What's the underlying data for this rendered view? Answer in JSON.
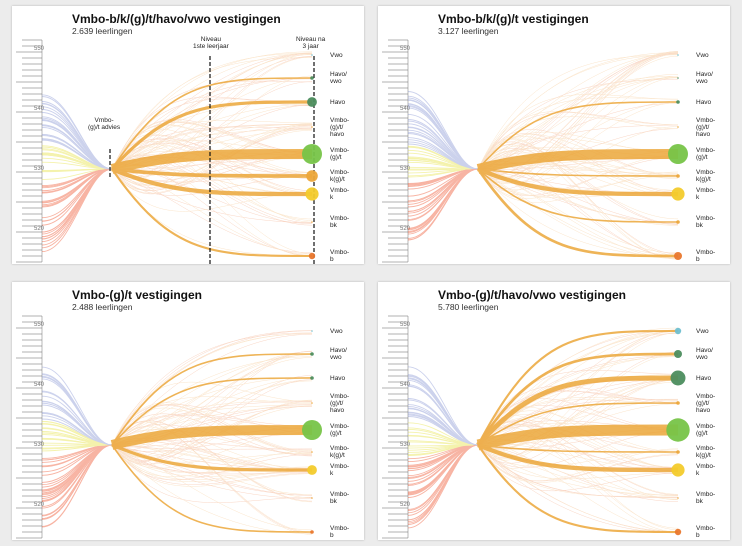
{
  "chart_data": [
    {
      "type": "flow",
      "title": "Vmbo-b/k/(g)/t/havo/vwo vestigingen",
      "subtitle": "2.639 leerlingen",
      "axis_ticks": [
        "550",
        "540",
        "530",
        "520"
      ],
      "ylim": [
        515,
        552
      ],
      "categories": [
        "Vwo",
        "Havo/\nvwo",
        "Havo",
        "Vmbo-\n(g)/t/\nhavo",
        "Vmbo-\n(g)/t",
        "Vmbo-\nk(g)/t",
        "Vmbo-\nk",
        "Vmbo-\nbk",
        "Vmbo-\nb"
      ],
      "node_sizes": [
        0,
        1,
        4,
        0,
        10,
        5,
        6,
        0,
        2
      ],
      "annotations": {
        "advies": "Vmbo-\n(g)/t advies",
        "year1": "Niveau\n1ste leerjaar",
        "year3": "Niveau na\n3 jaar"
      }
    },
    {
      "type": "flow",
      "title": "Vmbo-b/k/(g)/t vestigingen",
      "subtitle": "3.127 leerlingen",
      "axis_ticks": [
        "550",
        "540",
        "530",
        "520"
      ],
      "ylim": [
        515,
        552
      ],
      "categories": [
        "Vwo",
        "Havo/\nvwo",
        "Havo",
        "Vmbo-\n(g)/t/\nhavo",
        "Vmbo-\n(g)/t",
        "Vmbo-\nk(g)/t",
        "Vmbo-\nk",
        "Vmbo-\nbk",
        "Vmbo-\nb"
      ],
      "node_sizes": [
        0,
        0,
        1,
        0,
        10,
        1,
        6,
        1,
        3
      ]
    },
    {
      "type": "flow",
      "title": "Vmbo-(g)/t vestigingen",
      "subtitle": "2.488 leerlingen",
      "axis_ticks": [
        "550",
        "540",
        "530",
        "520"
      ],
      "ylim": [
        515,
        552
      ],
      "categories": [
        "Vwo",
        "Havo/\nvwo",
        "Havo",
        "Vmbo-\n(g)/t/\nhavo",
        "Vmbo-\n(g)/t",
        "Vmbo-\nk(g)/t",
        "Vmbo-\nk",
        "Vmbo-\nbk",
        "Vmbo-\nb"
      ],
      "node_sizes": [
        0,
        1,
        1,
        0,
        10,
        0,
        4,
        0,
        1
      ]
    },
    {
      "type": "flow",
      "title": "Vmbo-(g)/t/havo/vwo vestigingen",
      "subtitle": "5.780 leerlingen",
      "axis_ticks": [
        "550",
        "540",
        "530",
        "520"
      ],
      "ylim": [
        515,
        552
      ],
      "categories": [
        "Vwo",
        "Havo/\nvwo",
        "Havo",
        "Vmbo-\n(g)/t/\nhavo",
        "Vmbo-\n(g)/t",
        "Vmbo-\nk(g)/t",
        "Vmbo-\nk",
        "Vmbo-\nbk",
        "Vmbo-\nb"
      ],
      "node_sizes": [
        2,
        3,
        7,
        1,
        12,
        1,
        6,
        0,
        2
      ]
    }
  ],
  "colors": {
    "main_flow": "#eca73a",
    "vmbo_gt_node": "#77c448",
    "havo_node": "#4c8d5e",
    "vmbo_k_node": "#f3cb2c",
    "vmbo_b_node": "#e9772d",
    "vwo_node": "#6fbfd0",
    "left_blue": "#8e9bd6",
    "left_yellow": "#e7e34a",
    "left_red": "#ef5a36"
  }
}
